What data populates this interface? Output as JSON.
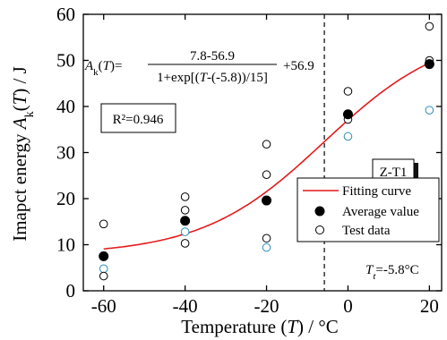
{
  "chart_data": {
    "type": "scatter",
    "xlabel": "Temperature (T) / °C",
    "ylabel": "Imapct energy A_k(T) / J",
    "xlim": [
      -65,
      23
    ],
    "ylim": [
      0,
      60
    ],
    "x_ticks": [
      -60,
      -40,
      -20,
      0,
      20
    ],
    "y_ticks": [
      0,
      10,
      20,
      30,
      40,
      50,
      60
    ],
    "grid": false,
    "legend_position": "lower-right",
    "equation": {
      "lhs": "A_k(T)=",
      "numerator": "7.8-56.9",
      "denominator": "1+exp[(T-(-5.8))/15]",
      "tail": "+56.9"
    },
    "r_squared": "R²=0.946",
    "sample_label": "Z-T1",
    "transition_label": "T_t=-5.8°C",
    "transition_temperature": -5.8,
    "fit": {
      "A1": 7.8,
      "A2": 56.9,
      "T0": -5.8,
      "dT": 15
    },
    "series": [
      {
        "name": "Fitting curve",
        "kind": "line",
        "color": "#e41a1c"
      },
      {
        "name": "Average value",
        "kind": "marker",
        "color": "#000000",
        "x": [
          -60,
          -40,
          -20,
          0,
          20
        ],
        "y": [
          7.5,
          15.2,
          19.6,
          38.3,
          49.2
        ]
      },
      {
        "name": "Test data",
        "kind": "marker",
        "color": "#000000",
        "points": [
          {
            "x": -60,
            "y": 14.5,
            "color": "#000000"
          },
          {
            "x": -60,
            "y": 7.5,
            "color": "#000000"
          },
          {
            "x": -60,
            "y": 4.8,
            "color": "#2c8fb5"
          },
          {
            "x": -60,
            "y": 3.2,
            "color": "#000000"
          },
          {
            "x": -40,
            "y": 20.4,
            "color": "#000000"
          },
          {
            "x": -40,
            "y": 17.5,
            "color": "#000000"
          },
          {
            "x": -40,
            "y": 12.8,
            "color": "#2c8fb5"
          },
          {
            "x": -40,
            "y": 10.3,
            "color": "#000000"
          },
          {
            "x": -20,
            "y": 31.8,
            "color": "#000000"
          },
          {
            "x": -20,
            "y": 25.2,
            "color": "#000000"
          },
          {
            "x": -20,
            "y": 11.4,
            "color": "#000000"
          },
          {
            "x": -20,
            "y": 9.4,
            "color": "#2c8fb5"
          },
          {
            "x": 0,
            "y": 43.3,
            "color": "#000000"
          },
          {
            "x": 0,
            "y": 38.4,
            "color": "#000000"
          },
          {
            "x": 0,
            "y": 37.2,
            "color": "#000000"
          },
          {
            "x": 0,
            "y": 33.5,
            "color": "#2c8fb5"
          },
          {
            "x": 20,
            "y": 57.4,
            "color": "#000000"
          },
          {
            "x": 20,
            "y": 50.0,
            "color": "#000000"
          },
          {
            "x": 20,
            "y": 49.2,
            "color": "#000000"
          },
          {
            "x": 20,
            "y": 39.2,
            "color": "#2c8fb5"
          }
        ]
      }
    ]
  }
}
